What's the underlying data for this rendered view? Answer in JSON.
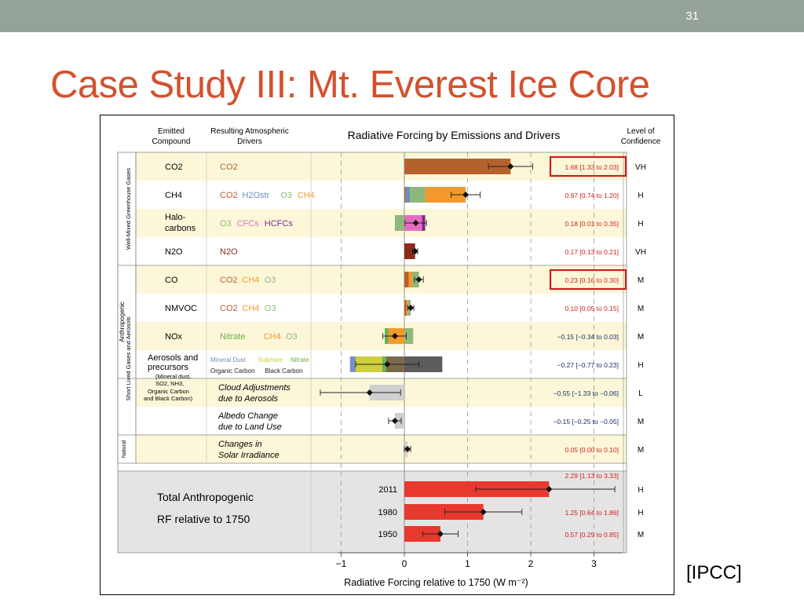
{
  "slide": {
    "number": "31",
    "title": "Case Study III: Mt. Everest Ice Core",
    "source": "[IPCC]"
  },
  "chart_data": {
    "type": "bar",
    "orientation": "horizontal",
    "title": "Radiative Forcing by Emissions and Drivers",
    "xlabel": "Radiative Forcing relative to 1750 (W m⁻²)",
    "xlim": [
      -1.0,
      3.5
    ],
    "xticks": [
      -1,
      0,
      1,
      2,
      3
    ],
    "xtick_labels": [
      "−1",
      "0",
      "1",
      "2",
      "3"
    ],
    "headers": {
      "emitted": "Emitted Compound",
      "drivers": "Resulting Atmospheric Drivers",
      "confidence": "Level of Confidence"
    },
    "groups": {
      "anthropogenic": "Anthropogenic",
      "wmghg": "Well-Mixed Greenhouse Gases",
      "slcf": "Short Lived Gases and Aerosols",
      "natural": "Natural"
    },
    "colors": {
      "co2": "#b5612e",
      "ch4": "#f39a2c",
      "h2o": "#6b8fbf",
      "o3": "#8db87a",
      "cfc": "#e56cc0",
      "hcfc": "#7b2a8a",
      "n2o": "#8b2b1f",
      "mineral_dust": "#7a8fc2",
      "sulphate": "#cfcf3c",
      "nitrate": "#6ab04a",
      "organic_carbon": "#7b6a4a",
      "black_carbon": "#5c5c5c",
      "cloud": "#cfcfcf",
      "albedo": "#cfcfcf",
      "total": "#e8392e",
      "highlight_box": "#cc1f1f"
    },
    "rows": [
      {
        "emitted": "CO2",
        "drivers": [
          {
            "text": "CO2",
            "color": "#b5612e"
          }
        ],
        "value": 1.68,
        "range": [
          1.33,
          2.03
        ],
        "label": "1.68 [1.33 to 2.03]",
        "confidence": "VH",
        "highlight": true,
        "segments": [
          {
            "from": 0,
            "to": 1.68,
            "color": "#b5612e"
          }
        ]
      },
      {
        "emitted": "CH4",
        "drivers": [
          {
            "text": "CO2",
            "color": "#b5612e"
          },
          {
            "text": "H2Ostr",
            "color": "#6b8fbf"
          },
          {
            "text": "O3",
            "color": "#8db87a"
          },
          {
            "text": "CH4",
            "color": "#f39a2c"
          }
        ],
        "value": 0.97,
        "range": [
          0.74,
          1.2
        ],
        "label": "0.97 [0.74 to 1.20]",
        "confidence": "H",
        "segments": [
          {
            "from": 0,
            "to": 0.02,
            "color": "#b5612e"
          },
          {
            "from": 0.02,
            "to": 0.09,
            "color": "#6b8fbf"
          },
          {
            "from": 0.09,
            "to": 0.33,
            "color": "#8db87a"
          },
          {
            "from": 0.33,
            "to": 0.97,
            "color": "#f39a2c"
          }
        ]
      },
      {
        "emitted": "Halo-carbons",
        "drivers": [
          {
            "text": "O3",
            "color": "#8db87a"
          },
          {
            "text": "CFCs",
            "color": "#e56cc0"
          },
          {
            "text": "HCFCs",
            "color": "#7b2a8a"
          }
        ],
        "value": 0.18,
        "range": [
          0.01,
          0.35
        ],
        "label": "0.18 [0.01 to 0.35]",
        "confidence": "H",
        "segments": [
          {
            "from": -0.15,
            "to": 0,
            "color": "#8db87a"
          },
          {
            "from": 0,
            "to": 0.28,
            "color": "#e56cc0"
          },
          {
            "from": 0.28,
            "to": 0.33,
            "color": "#7b2a8a"
          }
        ]
      },
      {
        "emitted": "N2O",
        "drivers": [
          {
            "text": "N2O",
            "color": "#8b2b1f"
          }
        ],
        "value": 0.17,
        "range": [
          0.13,
          0.21
        ],
        "label": "0.17 [0.13 to 0.21]",
        "confidence": "VH",
        "segments": [
          {
            "from": 0,
            "to": 0.17,
            "color": "#8b2b1f"
          }
        ]
      },
      {
        "emitted": "CO",
        "drivers": [
          {
            "text": "CO2",
            "color": "#b5612e"
          },
          {
            "text": "CH4",
            "color": "#f39a2c"
          },
          {
            "text": "O3",
            "color": "#8db87a"
          }
        ],
        "value": 0.23,
        "range": [
          0.16,
          0.3
        ],
        "label": "0.23 [0.16 to 0.30]",
        "confidence": "M",
        "highlight": true,
        "segments": [
          {
            "from": 0,
            "to": 0.07,
            "color": "#b5612e"
          },
          {
            "from": 0.07,
            "to": 0.13,
            "color": "#f39a2c"
          },
          {
            "from": 0.13,
            "to": 0.23,
            "color": "#8db87a"
          }
        ]
      },
      {
        "emitted": "NMVOC",
        "drivers": [
          {
            "text": "CO2",
            "color": "#b5612e"
          },
          {
            "text": "CH4",
            "color": "#f39a2c"
          },
          {
            "text": "O3",
            "color": "#8db87a"
          }
        ],
        "value": 0.1,
        "range": [
          0.05,
          0.15
        ],
        "label": "0.10 [0.05 to 0.15]",
        "confidence": "M",
        "segments": [
          {
            "from": 0,
            "to": 0.03,
            "color": "#b5612e"
          },
          {
            "from": 0.03,
            "to": 0.06,
            "color": "#f39a2c"
          },
          {
            "from": 0.06,
            "to": 0.1,
            "color": "#8db87a"
          }
        ]
      },
      {
        "emitted": "NOx",
        "drivers": [
          {
            "text": "Nitrate",
            "color": "#6ab04a"
          },
          {
            "text": "CH4",
            "color": "#f39a2c"
          },
          {
            "text": "O3",
            "color": "#8db87a"
          }
        ],
        "value": -0.15,
        "range": [
          -0.34,
          0.03
        ],
        "label": "−0.15 [−0.34 to 0.03]",
        "confidence": "M",
        "segments": [
          {
            "from": -0.31,
            "to": -0.25,
            "color": "#6ab04a"
          },
          {
            "from": -0.25,
            "to": 0,
            "color": "#f39a2c"
          },
          {
            "from": 0,
            "to": 0.14,
            "color": "#8db87a"
          }
        ]
      },
      {
        "emitted": "Aerosols and precursors",
        "emitted_sub": "(Mineral dust, SO2, NH3, Organic Carbon and Black Carbon)",
        "drivers": [
          {
            "text": "Mineral Dust",
            "color": "#6b8fbf"
          },
          {
            "text": "Sulphate",
            "color": "#cfcf3c"
          },
          {
            "text": "Nitrate",
            "color": "#6ab04a"
          },
          {
            "text": "Organic Carbon",
            "color": "#555555"
          },
          {
            "text": "Black Carbon",
            "color": "#555555"
          }
        ],
        "value": -0.27,
        "range": [
          -0.77,
          0.23
        ],
        "label": "−0.27 [−0.77 to 0.23]",
        "confidence": "H",
        "segments": [
          {
            "from": -0.86,
            "to": -0.77,
            "color": "#7a8fc2"
          },
          {
            "from": -0.77,
            "to": -0.35,
            "color": "#cfcf3c"
          },
          {
            "from": -0.35,
            "to": -0.29,
            "color": "#6ab04a"
          },
          {
            "from": -0.29,
            "to": 0,
            "color": "#7b6a4a"
          },
          {
            "from": 0,
            "to": 0.6,
            "color": "#5c5c5c"
          }
        ]
      },
      {
        "emitted": "",
        "drivers": [
          {
            "text": "Cloud Adjustments",
            "color": "#000000"
          },
          {
            "text": "due to Aerosols",
            "color": "#000000"
          }
        ],
        "italic": true,
        "value": -0.55,
        "range": [
          -1.33,
          -0.06
        ],
        "label": "−0.55 [−1.33 to −0.06]",
        "confidence": "L",
        "segments": [
          {
            "from": -0.55,
            "to": 0,
            "color": "#cfcfcf"
          }
        ]
      },
      {
        "emitted": "",
        "drivers": [
          {
            "text": "Albedo Change",
            "color": "#000000"
          },
          {
            "text": "due to Land Use",
            "color": "#000000"
          }
        ],
        "italic": true,
        "value": -0.15,
        "range": [
          -0.25,
          -0.05
        ],
        "label": "−0.15 [−0.25 to −0.05]",
        "confidence": "M",
        "segments": [
          {
            "from": -0.15,
            "to": 0,
            "color": "#cfcfcf"
          }
        ]
      },
      {
        "emitted": "",
        "drivers": [
          {
            "text": "Changes in",
            "color": "#000000"
          },
          {
            "text": "Solar Irradiance",
            "color": "#000000"
          }
        ],
        "italic": true,
        "value": 0.05,
        "range": [
          0.0,
          0.1
        ],
        "label": "0.05 [0.00 to 0.10]",
        "confidence": "M",
        "segments": [
          {
            "from": 0,
            "to": 0.05,
            "color": "#cfcfcf"
          }
        ]
      }
    ],
    "total": {
      "label_lines": [
        "Total Anthropogenic",
        "RF relative to 1750"
      ],
      "years": [
        {
          "year": "2011",
          "value": 2.29,
          "range": [
            1.13,
            3.33
          ],
          "label": "2.29 [1.13 to 3.33]",
          "confidence": "H"
        },
        {
          "year": "1980",
          "value": 1.25,
          "range": [
            0.64,
            1.86
          ],
          "label": "1.25 [0.64 to 1.86]",
          "confidence": "H"
        },
        {
          "year": "1950",
          "value": 0.57,
          "range": [
            0.29,
            0.85
          ],
          "label": "0.57 [0.29 to 0.85]",
          "confidence": "M"
        }
      ]
    }
  }
}
